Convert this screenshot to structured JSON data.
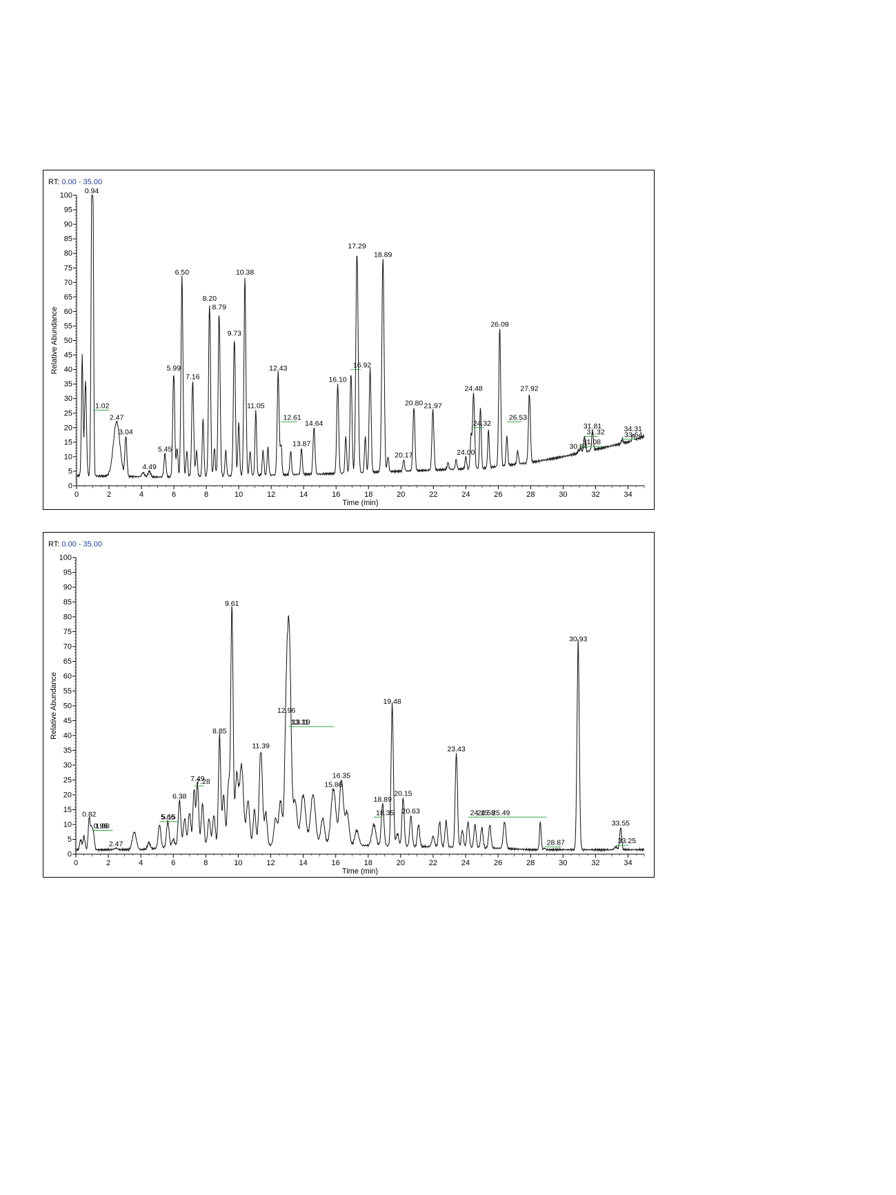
{
  "chart_data": [
    {
      "type": "line",
      "rt_prefix": "RT:",
      "rt_range": "0.00 - 35.00",
      "xlabel": "Time (min)",
      "ylabel": "Relative Abundance",
      "xlim": [
        0,
        35
      ],
      "ylim": [
        0,
        100
      ],
      "xticks": [
        0,
        2,
        4,
        6,
        8,
        10,
        12,
        14,
        16,
        18,
        20,
        22,
        24,
        26,
        28,
        30,
        32,
        34
      ],
      "yticks": [
        0,
        5,
        10,
        15,
        20,
        25,
        30,
        35,
        40,
        45,
        50,
        55,
        60,
        65,
        70,
        75,
        80,
        85,
        90,
        95,
        100
      ],
      "baseline": [
        [
          0,
          3.5
        ],
        [
          5,
          3
        ],
        [
          10,
          3.5
        ],
        [
          15,
          4
        ],
        [
          20,
          5
        ],
        [
          25,
          6
        ],
        [
          28,
          8
        ],
        [
          30,
          10
        ],
        [
          32,
          12.5
        ],
        [
          34,
          15
        ],
        [
          35,
          17
        ]
      ],
      "peaks": [
        {
          "x": 0.35,
          "y": 44,
          "w": 0.05
        },
        {
          "x": 0.55,
          "y": 36,
          "w": 0.06
        },
        {
          "x": 0.94,
          "y": 100,
          "w": 0.05,
          "label": "0.94"
        },
        {
          "x": 1.02,
          "y": 75,
          "w": 0.04,
          "label": "1.02",
          "label_y": 26,
          "bar": 1.0
        },
        {
          "x": 2.47,
          "y": 22,
          "w": 0.2,
          "label": "2.47"
        },
        {
          "x": 3.04,
          "y": 17,
          "w": 0.06,
          "label": "3.04"
        },
        {
          "x": 4.1,
          "y": 4.5,
          "w": 0.08
        },
        {
          "x": 4.49,
          "y": 5,
          "w": 0.08,
          "label": "4.49"
        },
        {
          "x": 5.45,
          "y": 11,
          "w": 0.06,
          "label": "5.45"
        },
        {
          "x": 5.99,
          "y": 39,
          "w": 0.06,
          "label": "5.99"
        },
        {
          "x": 6.2,
          "y": 13,
          "w": 0.05
        },
        {
          "x": 6.5,
          "y": 72,
          "w": 0.06,
          "label": "6.50"
        },
        {
          "x": 6.8,
          "y": 12,
          "w": 0.05
        },
        {
          "x": 7.16,
          "y": 36,
          "w": 0.06,
          "label": "7.16"
        },
        {
          "x": 7.4,
          "y": 12,
          "w": 0.05
        },
        {
          "x": 7.8,
          "y": 23,
          "w": 0.05
        },
        {
          "x": 8.2,
          "y": 63,
          "w": 0.06,
          "label": "8.20"
        },
        {
          "x": 8.5,
          "y": 13,
          "w": 0.05
        },
        {
          "x": 8.79,
          "y": 60,
          "w": 0.06,
          "label": "8.79"
        },
        {
          "x": 9.2,
          "y": 12,
          "w": 0.05
        },
        {
          "x": 9.73,
          "y": 51,
          "w": 0.06,
          "label": "9.73"
        },
        {
          "x": 10.0,
          "y": 22,
          "w": 0.05
        },
        {
          "x": 10.38,
          "y": 72,
          "w": 0.06,
          "label": "10.38"
        },
        {
          "x": 10.7,
          "y": 12,
          "w": 0.05
        },
        {
          "x": 11.05,
          "y": 26,
          "w": 0.05,
          "label": "11.05"
        },
        {
          "x": 11.5,
          "y": 12,
          "w": 0.05
        },
        {
          "x": 11.8,
          "y": 13,
          "w": 0.05
        },
        {
          "x": 12.43,
          "y": 39,
          "w": 0.06,
          "label": "12.43"
        },
        {
          "x": 12.61,
          "y": 14,
          "w": 0.05,
          "label": "12.61",
          "label_y": 22,
          "bar": 1.0
        },
        {
          "x": 13.2,
          "y": 12,
          "w": 0.05
        },
        {
          "x": 13.87,
          "y": 13,
          "w": 0.05,
          "label": "13.87"
        },
        {
          "x": 14.64,
          "y": 20,
          "w": 0.06,
          "label": "14.64"
        },
        {
          "x": 16.1,
          "y": 35,
          "w": 0.06,
          "label": "16.10"
        },
        {
          "x": 16.6,
          "y": 17,
          "w": 0.05
        },
        {
          "x": 16.92,
          "y": 39,
          "w": 0.06,
          "label": "16.92",
          "label_y": 40,
          "bar": 0.6
        },
        {
          "x": 17.29,
          "y": 81,
          "w": 0.07,
          "label": "17.29"
        },
        {
          "x": 17.8,
          "y": 17,
          "w": 0.05
        },
        {
          "x": 18.1,
          "y": 40,
          "w": 0.06
        },
        {
          "x": 18.89,
          "y": 78,
          "w": 0.07,
          "label": "18.89"
        },
        {
          "x": 19.2,
          "y": 10,
          "w": 0.05
        },
        {
          "x": 20.17,
          "y": 9,
          "w": 0.05,
          "label": "20.17"
        },
        {
          "x": 20.8,
          "y": 27,
          "w": 0.06,
          "label": "20.80"
        },
        {
          "x": 21.97,
          "y": 26,
          "w": 0.06,
          "label": "21.97"
        },
        {
          "x": 22.9,
          "y": 8,
          "w": 0.05
        },
        {
          "x": 23.4,
          "y": 9,
          "w": 0.05
        },
        {
          "x": 24.0,
          "y": 10,
          "w": 0.05,
          "label": "24.00"
        },
        {
          "x": 24.32,
          "y": 17,
          "w": 0.05,
          "label": "24.32",
          "label_y": 20,
          "bar": 0.8
        },
        {
          "x": 24.48,
          "y": 32,
          "w": 0.06,
          "label": "24.48"
        },
        {
          "x": 24.9,
          "y": 27,
          "w": 0.05
        },
        {
          "x": 25.4,
          "y": 19,
          "w": 0.05
        },
        {
          "x": 26.09,
          "y": 54,
          "w": 0.06,
          "label": "26.09"
        },
        {
          "x": 26.53,
          "y": 17,
          "w": 0.05,
          "label": "26.53",
          "label_y": 22,
          "bar": 0.9
        },
        {
          "x": 27.2,
          "y": 12,
          "w": 0.05
        },
        {
          "x": 27.92,
          "y": 32,
          "w": 0.06,
          "label": "27.92"
        },
        {
          "x": 30.94,
          "y": 12,
          "w": 0.05,
          "label": "30.94"
        },
        {
          "x": 31.08,
          "y": 13,
          "w": 0.05,
          "label": "31.08",
          "label_y": 13.5,
          "bar": 1.5
        },
        {
          "x": 31.32,
          "y": 17,
          "w": 0.05,
          "label": "31.32",
          "label_y": 17,
          "bar": 0.8
        },
        {
          "x": 31.81,
          "y": 19,
          "w": 0.05,
          "label": "31.81"
        },
        {
          "x": 33.64,
          "y": 16,
          "w": 0.05,
          "label": "33.64",
          "label_y": 16,
          "bar": 0.8
        },
        {
          "x": 34.31,
          "y": 18,
          "w": 0.05,
          "label": "34.31"
        }
      ]
    },
    {
      "type": "line",
      "rt_prefix": "RT:",
      "rt_range": "0.00 - 35.00",
      "xlabel": "Time (min)",
      "ylabel": "Relative Abundance",
      "xlim": [
        0,
        35
      ],
      "ylim": [
        0,
        100
      ],
      "xticks": [
        0,
        2,
        4,
        6,
        8,
        10,
        12,
        14,
        16,
        18,
        20,
        22,
        24,
        26,
        28,
        30,
        32,
        34
      ],
      "yticks": [
        0,
        5,
        10,
        15,
        20,
        25,
        30,
        35,
        40,
        45,
        50,
        55,
        60,
        65,
        70,
        75,
        80,
        85,
        90,
        95,
        100
      ],
      "baseline": [
        [
          0,
          1.5
        ],
        [
          1.2,
          1.5
        ],
        [
          4,
          1.5
        ],
        [
          7,
          3
        ],
        [
          12,
          3
        ],
        [
          17,
          3
        ],
        [
          22,
          2.5
        ],
        [
          26,
          2
        ],
        [
          28,
          1.5
        ],
        [
          35,
          1.5
        ]
      ],
      "peaks": [
        {
          "x": 0.3,
          "y": 5,
          "w": 0.06
        },
        {
          "x": 0.5,
          "y": 6,
          "w": 0.06
        },
        {
          "x": 0.82,
          "y": 12,
          "w": 0.06,
          "label": "0.82"
        },
        {
          "x": 0.96,
          "y": 8,
          "w": 0.06,
          "label": "0.96",
          "label_y": 8,
          "bar": 1.2
        },
        {
          "x": 1.08,
          "y": 7,
          "w": 0.06,
          "label": "1.08",
          "label_y": 8,
          "bar": 1.2
        },
        {
          "x": 2.2,
          "y": 1.5,
          "w": 0.1
        },
        {
          "x": 2.47,
          "y": 2,
          "w": 0.1,
          "label": "2.47"
        },
        {
          "x": 3.6,
          "y": 7.5,
          "w": 0.12
        },
        {
          "x": 4.5,
          "y": 4,
          "w": 0.08
        },
        {
          "x": 5.15,
          "y": 10,
          "w": 0.08,
          "label": "5.15",
          "label_y": 11,
          "bar": 1.2
        },
        {
          "x": 5.66,
          "y": 11,
          "w": 0.08,
          "label": "5.66"
        },
        {
          "x": 6.0,
          "y": 5,
          "w": 0.08
        },
        {
          "x": 6.38,
          "y": 18,
          "w": 0.08,
          "label": "6.38"
        },
        {
          "x": 6.7,
          "y": 12,
          "w": 0.08
        },
        {
          "x": 7.0,
          "y": 14,
          "w": 0.08
        },
        {
          "x": 7.28,
          "y": 22,
          "w": 0.07,
          "label": "7.28",
          "label_y": 23,
          "bar": 0.6
        },
        {
          "x": 7.49,
          "y": 24,
          "w": 0.07,
          "label": "7.49"
        },
        {
          "x": 7.8,
          "y": 17,
          "w": 0.08
        },
        {
          "x": 8.2,
          "y": 12,
          "w": 0.08
        },
        {
          "x": 8.5,
          "y": 13,
          "w": 0.08
        },
        {
          "x": 8.85,
          "y": 40,
          "w": 0.07,
          "label": "8.85"
        },
        {
          "x": 9.1,
          "y": 20,
          "w": 0.08
        },
        {
          "x": 9.4,
          "y": 24,
          "w": 0.08
        },
        {
          "x": 9.61,
          "y": 83,
          "w": 0.07,
          "label": "9.61"
        },
        {
          "x": 9.9,
          "y": 26,
          "w": 0.1
        },
        {
          "x": 10.2,
          "y": 30,
          "w": 0.12
        },
        {
          "x": 10.6,
          "y": 18,
          "w": 0.1
        },
        {
          "x": 11.0,
          "y": 15,
          "w": 0.08
        },
        {
          "x": 11.39,
          "y": 35,
          "w": 0.1,
          "label": "11.39"
        },
        {
          "x": 11.7,
          "y": 14,
          "w": 0.08
        },
        {
          "x": 12.3,
          "y": 12,
          "w": 0.1
        },
        {
          "x": 12.6,
          "y": 18,
          "w": 0.1
        },
        {
          "x": 12.96,
          "y": 47,
          "w": 0.1,
          "label": "12.96"
        },
        {
          "x": 13.11,
          "y": 42,
          "w": 0.1,
          "label": "13.11",
          "label_y": 43,
          "bar": 2.8
        },
        {
          "x": 13.19,
          "y": 35,
          "w": 0.1,
          "label": "13.19",
          "label_y": 43,
          "bar": 0
        },
        {
          "x": 13.5,
          "y": 18,
          "w": 0.12
        },
        {
          "x": 14.0,
          "y": 20,
          "w": 0.15
        },
        {
          "x": 14.6,
          "y": 20,
          "w": 0.15
        },
        {
          "x": 15.2,
          "y": 12,
          "w": 0.12
        },
        {
          "x": 15.86,
          "y": 22,
          "w": 0.15,
          "label": "15.86"
        },
        {
          "x": 16.35,
          "y": 25,
          "w": 0.12,
          "label": "16.35"
        },
        {
          "x": 16.7,
          "y": 14,
          "w": 0.12
        },
        {
          "x": 17.3,
          "y": 8,
          "w": 0.12
        },
        {
          "x": 18.35,
          "y": 10,
          "w": 0.12,
          "label": "18.35",
          "label_y": 12.5,
          "bar": 0.5
        },
        {
          "x": 18.89,
          "y": 17,
          "w": 0.08,
          "label": "18.89"
        },
        {
          "x": 19.48,
          "y": 50,
          "w": 0.07,
          "label": "19.48"
        },
        {
          "x": 19.8,
          "y": 7,
          "w": 0.08
        },
        {
          "x": 20.15,
          "y": 19,
          "w": 0.07,
          "label": "20.15"
        },
        {
          "x": 20.63,
          "y": 13,
          "w": 0.07,
          "label": "20.63"
        },
        {
          "x": 21.1,
          "y": 10,
          "w": 0.07
        },
        {
          "x": 22.0,
          "y": 6,
          "w": 0.08
        },
        {
          "x": 22.4,
          "y": 11,
          "w": 0.07
        },
        {
          "x": 22.8,
          "y": 11,
          "w": 0.07
        },
        {
          "x": 23.43,
          "y": 34,
          "w": 0.07,
          "label": "23.43"
        },
        {
          "x": 23.8,
          "y": 8,
          "w": 0.07
        },
        {
          "x": 24.15,
          "y": 11,
          "w": 0.07,
          "label": "24.15",
          "label_y": 12.5,
          "bar": 0.6
        },
        {
          "x": 24.58,
          "y": 10,
          "w": 0.07,
          "label": "24.58",
          "label_y": 12.5,
          "bar": 1.0
        },
        {
          "x": 25.0,
          "y": 9,
          "w": 0.07
        },
        {
          "x": 25.49,
          "y": 10,
          "w": 0.07,
          "label": "25.49",
          "label_y": 12.5,
          "bar": 3.5
        },
        {
          "x": 26.4,
          "y": 11,
          "w": 0.08
        },
        {
          "x": 28.6,
          "y": 11,
          "w": 0.05
        },
        {
          "x": 28.87,
          "y": 2,
          "w": 0.06,
          "label": "28.87",
          "label_y": 2.5,
          "bar": 1.0
        },
        {
          "x": 30.93,
          "y": 71,
          "w": 0.07,
          "label": "30.93"
        },
        {
          "x": 33.25,
          "y": 2.5,
          "w": 0.08,
          "label": "33.25",
          "label_y": 3,
          "bar": 0.8
        },
        {
          "x": 33.55,
          "y": 9,
          "w": 0.06,
          "label": "33.55"
        }
      ]
    }
  ]
}
